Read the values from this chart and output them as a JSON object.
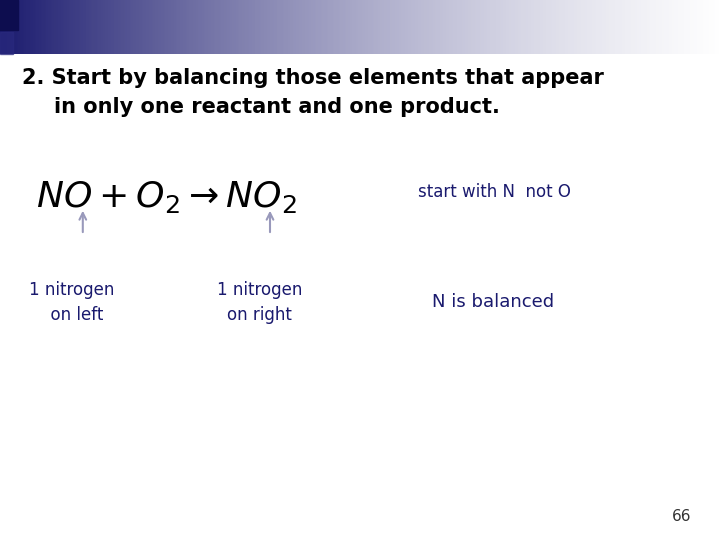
{
  "background_color": "#ffffff",
  "title_line1": "2. Start by balancing those elements that appear",
  "title_line2": "in only one reactant and one product.",
  "title_color": "#000000",
  "title_fontsize": 15,
  "equation_color": "#000000",
  "annotation_color": "#1a1a6e",
  "arrow_color": "#9999bb",
  "label1": "1 nitrogen\n  on left",
  "label2": "1 nitrogen\non right",
  "label3": "N is balanced",
  "side_note": "start with N  not O",
  "page_number": "66",
  "header_dark_color": "#1a1a6e",
  "header_mid_color": "#6677aa",
  "header_light_color": "#d0d8ee"
}
